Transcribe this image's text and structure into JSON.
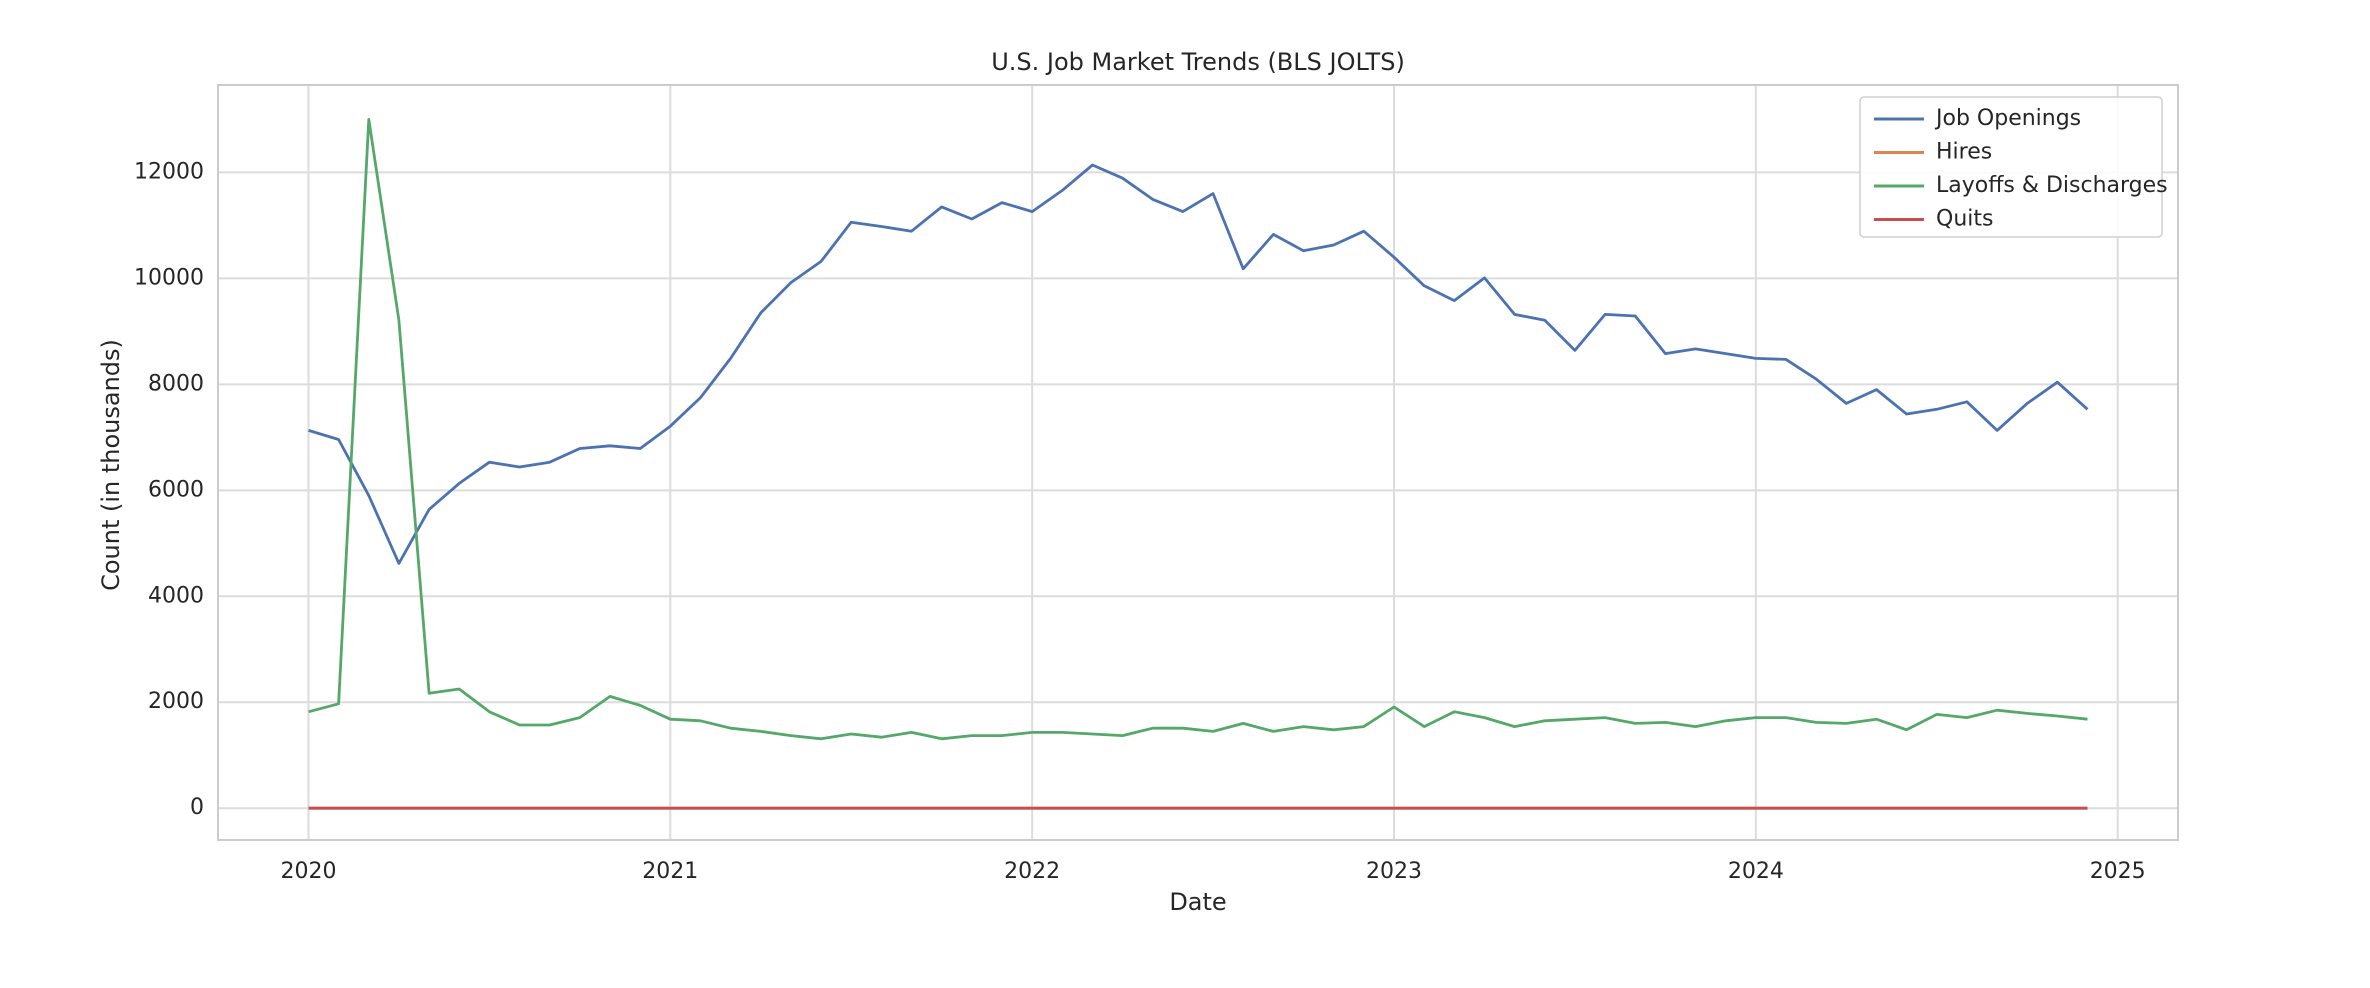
{
  "chart_data": {
    "type": "line",
    "title": "U.S. Job Market Trends (BLS JOLTS)",
    "x_label": "Date",
    "y_label": "Count (in thousands)",
    "x": [
      "2020-01",
      "2020-02",
      "2020-03",
      "2020-04",
      "2020-05",
      "2020-06",
      "2020-07",
      "2020-08",
      "2020-09",
      "2020-10",
      "2020-11",
      "2020-12",
      "2021-01",
      "2021-02",
      "2021-03",
      "2021-04",
      "2021-05",
      "2021-06",
      "2021-07",
      "2021-08",
      "2021-09",
      "2021-10",
      "2021-11",
      "2021-12",
      "2022-01",
      "2022-02",
      "2022-03",
      "2022-04",
      "2022-05",
      "2022-06",
      "2022-07",
      "2022-08",
      "2022-09",
      "2022-10",
      "2022-11",
      "2022-12",
      "2023-01",
      "2023-02",
      "2023-03",
      "2023-04",
      "2023-05",
      "2023-06",
      "2023-07",
      "2023-08",
      "2023-09",
      "2023-10",
      "2023-11",
      "2023-12",
      "2024-01",
      "2024-02",
      "2024-03",
      "2024-04",
      "2024-05",
      "2024-06",
      "2024-07",
      "2024-08",
      "2024-09",
      "2024-10",
      "2024-11",
      "2024-12"
    ],
    "series": [
      {
        "name": "Job Openings",
        "color": "#4c72b0",
        "values": [
          7130,
          6960,
          5900,
          4620,
          5640,
          6130,
          6530,
          6440,
          6530,
          6790,
          6840,
          6790,
          7210,
          7750,
          8490,
          9350,
          9920,
          10320,
          11060,
          10980,
          10890,
          11350,
          11120,
          11430,
          11260,
          11660,
          12140,
          11890,
          11490,
          11260,
          11600,
          10180,
          10830,
          10520,
          10630,
          10890,
          10400,
          9860,
          9580,
          10010,
          9320,
          9210,
          8640,
          9320,
          9290,
          8580,
          8670,
          8580,
          8490,
          8470,
          8100,
          7640,
          7900,
          7440,
          7530,
          7670,
          7130,
          7640,
          8040,
          7530
        ]
      },
      {
        "name": "Hires",
        "color": "#dd8452",
        "values": [
          0,
          0,
          0,
          0,
          0,
          0,
          0,
          0,
          0,
          0,
          0,
          0,
          0,
          0,
          0,
          0,
          0,
          0,
          0,
          0,
          0,
          0,
          0,
          0,
          0,
          0,
          0,
          0,
          0,
          0,
          0,
          0,
          0,
          0,
          0,
          0,
          0,
          0,
          0,
          0,
          0,
          0,
          0,
          0,
          0,
          0,
          0,
          0,
          0,
          0,
          0,
          0,
          0,
          0,
          0,
          0,
          0,
          0,
          0,
          0
        ]
      },
      {
        "name": "Layoffs & Discharges",
        "color": "#55a868",
        "values": [
          1820,
          1970,
          13000,
          9210,
          2170,
          2250,
          1820,
          1570,
          1570,
          1710,
          2110,
          1940,
          1680,
          1650,
          1510,
          1450,
          1370,
          1310,
          1400,
          1340,
          1430,
          1310,
          1370,
          1370,
          1430,
          1430,
          1400,
          1370,
          1510,
          1510,
          1450,
          1600,
          1450,
          1540,
          1480,
          1540,
          1910,
          1540,
          1820,
          1710,
          1540,
          1650,
          1680,
          1710,
          1600,
          1620,
          1540,
          1650,
          1710,
          1710,
          1620,
          1600,
          1680,
          1480,
          1770,
          1710,
          1850,
          1790,
          1740,
          1680
        ]
      },
      {
        "name": "Quits",
        "color": "#c44e52",
        "values": [
          0,
          0,
          0,
          0,
          0,
          0,
          0,
          0,
          0,
          0,
          0,
          0,
          0,
          0,
          0,
          0,
          0,
          0,
          0,
          0,
          0,
          0,
          0,
          0,
          0,
          0,
          0,
          0,
          0,
          0,
          0,
          0,
          0,
          0,
          0,
          0,
          0,
          0,
          0,
          0,
          0,
          0,
          0,
          0,
          0,
          0,
          0,
          0,
          0,
          0,
          0,
          0,
          0,
          0,
          0,
          0,
          0,
          0,
          0,
          0
        ]
      }
    ],
    "xlim": [
      "2019-10",
      "2025-03"
    ],
    "xticks": [
      {
        "value": "2020-01",
        "label": "2020"
      },
      {
        "value": "2021-01",
        "label": "2021"
      },
      {
        "value": "2022-01",
        "label": "2022"
      },
      {
        "value": "2023-01",
        "label": "2023"
      },
      {
        "value": "2024-01",
        "label": "2024"
      },
      {
        "value": "2025-01",
        "label": "2025"
      }
    ],
    "ylim": [
      -600,
      13650
    ],
    "yticks": [
      0,
      2000,
      4000,
      6000,
      8000,
      10000,
      12000
    ],
    "grid": true,
    "legend": "upper right"
  }
}
